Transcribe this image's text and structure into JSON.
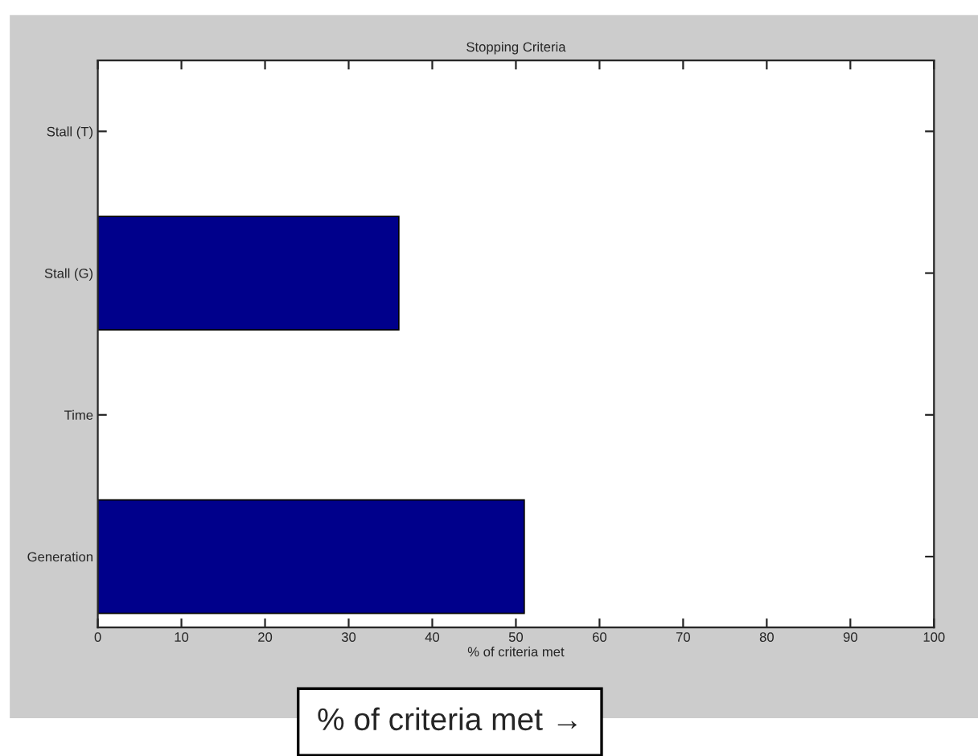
{
  "chart_data": {
    "type": "bar",
    "orientation": "horizontal",
    "title": "Stopping Criteria",
    "xlabel": "% of criteria met",
    "categories": [
      "Stall (T)",
      "Stall (G)",
      "Time",
      "Generation"
    ],
    "values": [
      0,
      36,
      0,
      51
    ],
    "color": "#00008b",
    "xlim": [
      0,
      100
    ],
    "xticks": [
      0,
      10,
      20,
      30,
      40,
      50,
      60,
      70,
      80,
      90,
      100
    ],
    "grid": false,
    "annotations": [
      "% of criteria met →"
    ]
  }
}
